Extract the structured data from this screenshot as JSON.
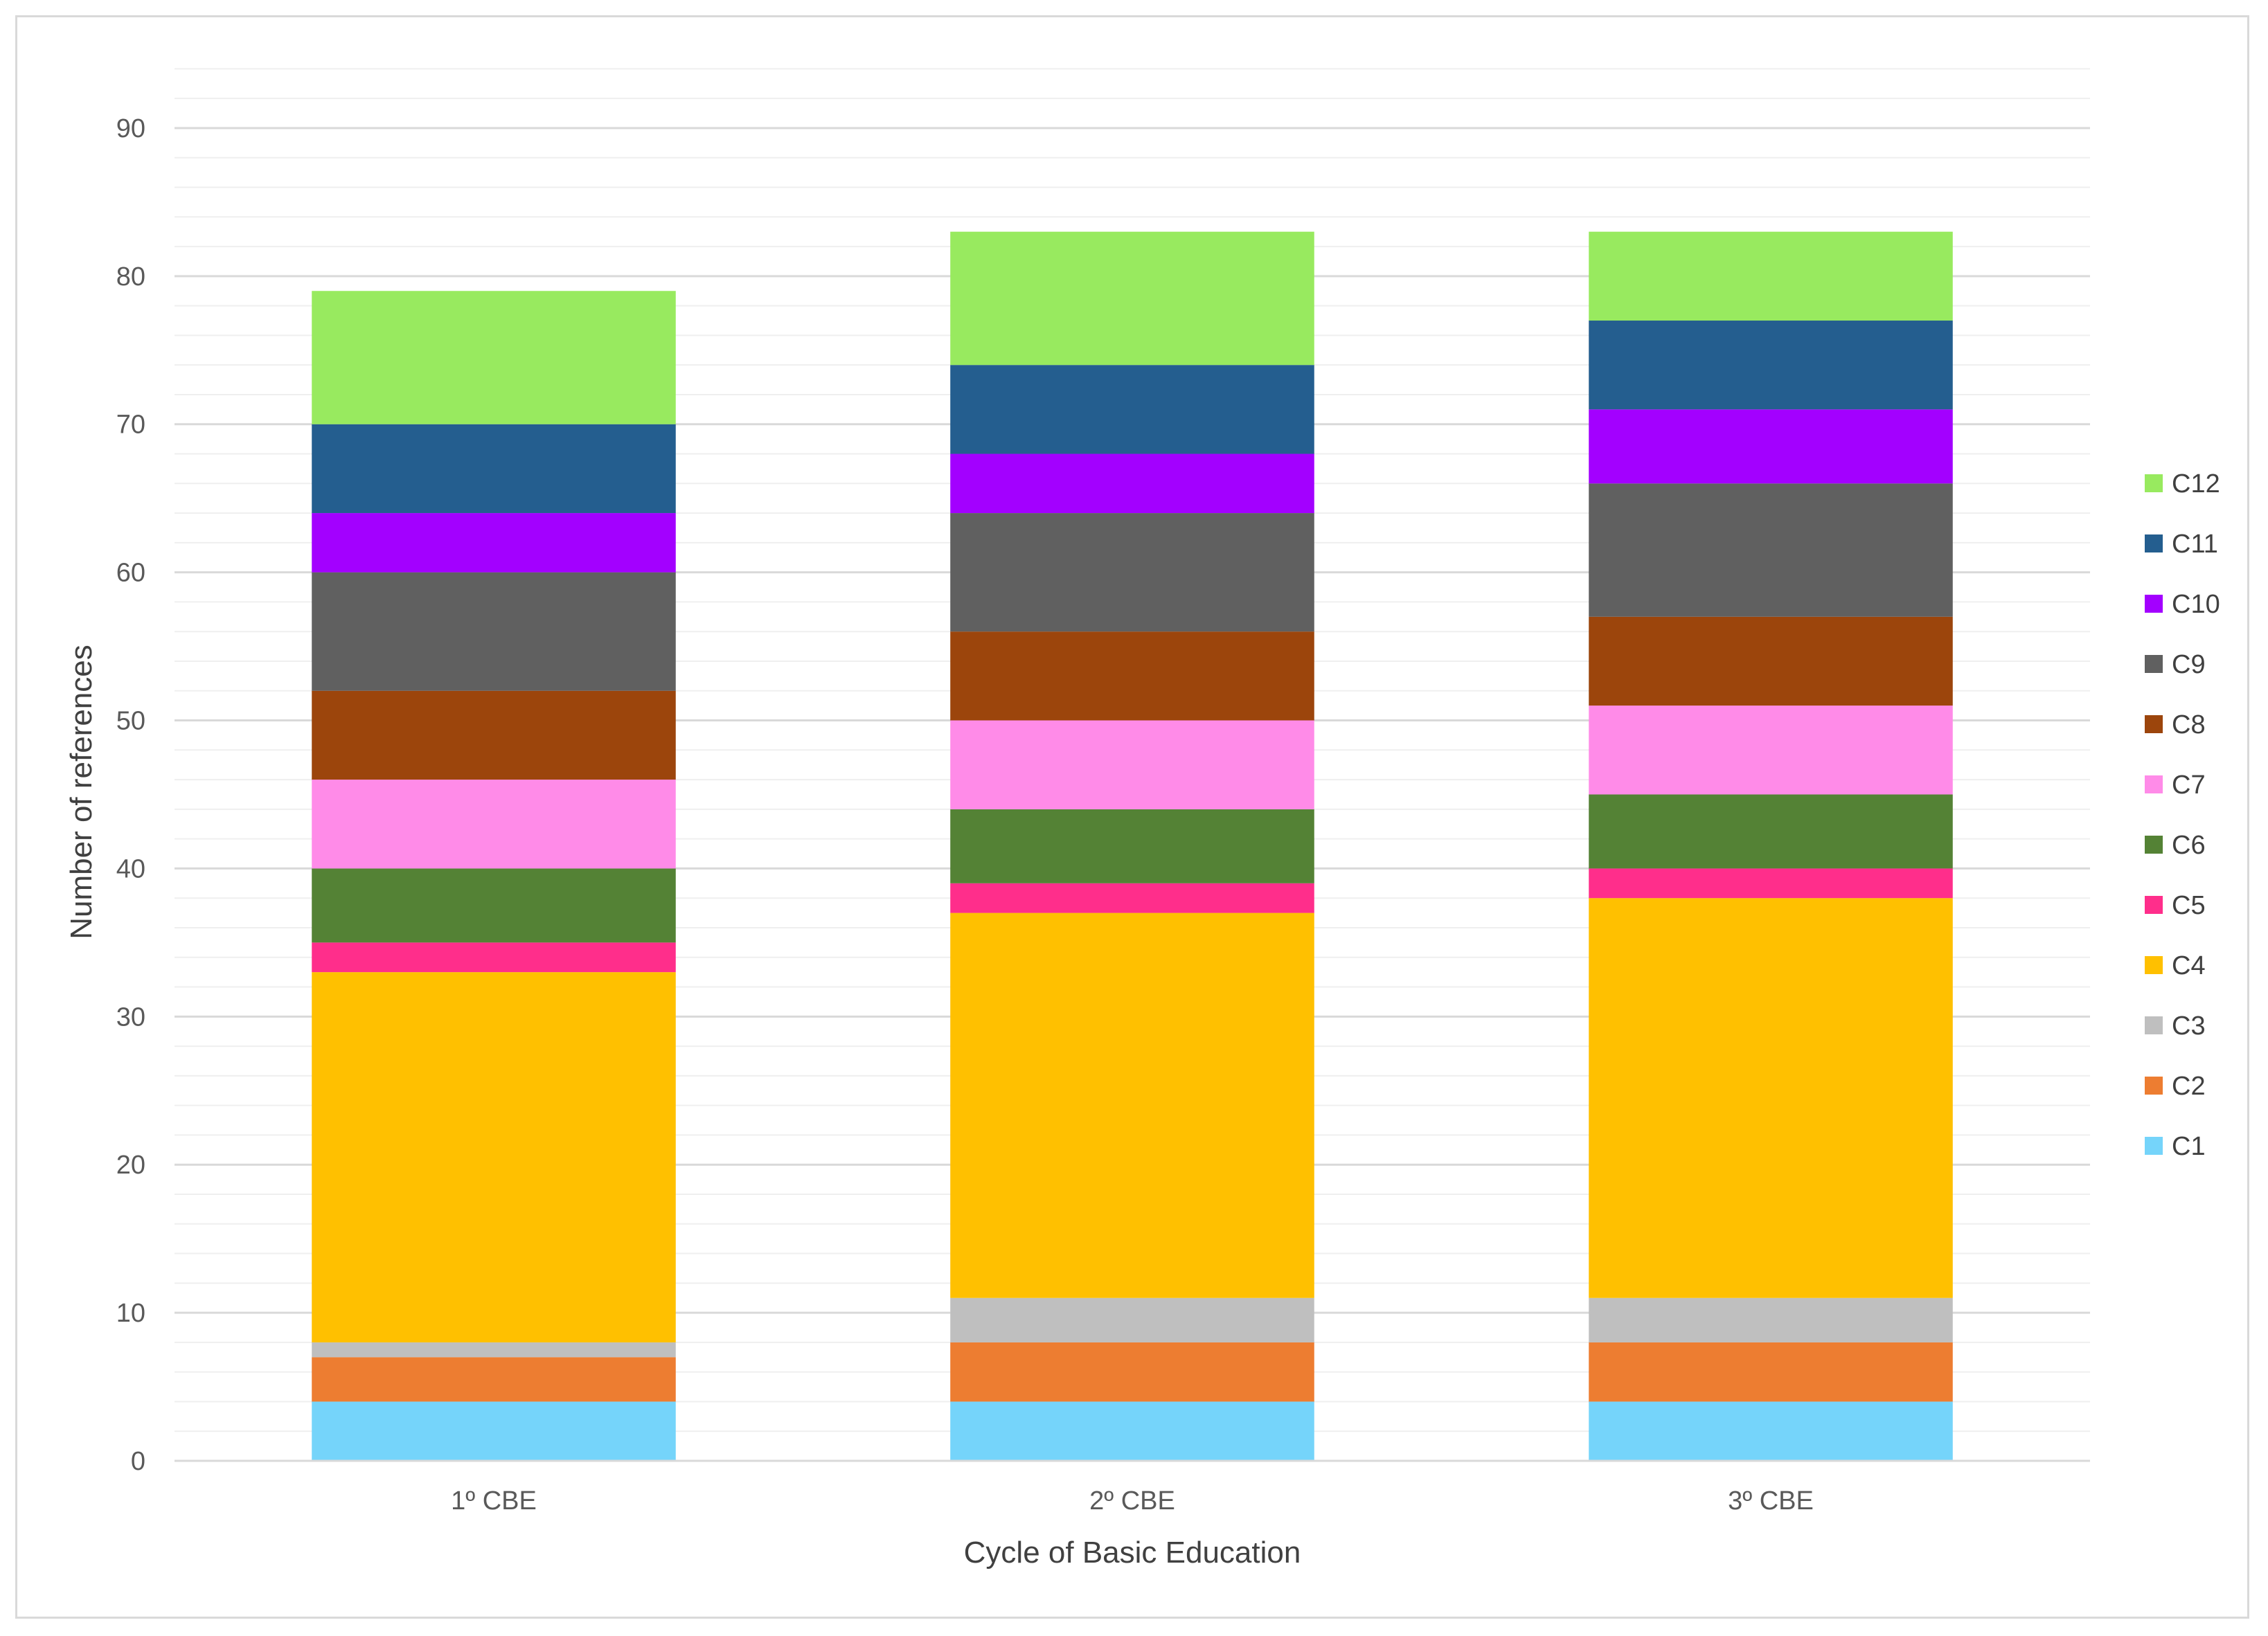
{
  "chart_data": {
    "type": "bar",
    "stacked": true,
    "title": "",
    "xlabel": "Cycle of Basic Education",
    "ylabel": "Number of references",
    "ylim": [
      0,
      95
    ],
    "yticks": [
      0,
      10,
      20,
      30,
      40,
      50,
      60,
      70,
      80,
      90
    ],
    "major_tick_step": 10,
    "minor_gridlines": true,
    "legend_position": "right",
    "categories": [
      "1º CBE",
      "2º CBE",
      "3º CBE"
    ],
    "series": [
      {
        "name": "C1",
        "color": "#75D4FA",
        "values": [
          4,
          4,
          4
        ]
      },
      {
        "name": "C2",
        "color": "#ED7D31",
        "values": [
          3,
          4,
          4
        ]
      },
      {
        "name": "C3",
        "color": "#BFBFBF",
        "values": [
          1,
          3,
          3
        ]
      },
      {
        "name": "C4",
        "color": "#FFC000",
        "values": [
          25,
          26,
          27
        ]
      },
      {
        "name": "C5",
        "color": "#FF2E8B",
        "values": [
          2,
          2,
          2
        ]
      },
      {
        "name": "C6",
        "color": "#548235",
        "values": [
          5,
          5,
          5
        ]
      },
      {
        "name": "C7",
        "color": "#FF8BE8",
        "values": [
          6,
          6,
          6
        ]
      },
      {
        "name": "C8",
        "color": "#9C450C",
        "values": [
          6,
          6,
          6
        ]
      },
      {
        "name": "C9",
        "color": "#606060",
        "values": [
          8,
          8,
          9
        ]
      },
      {
        "name": "C10",
        "color": "#A300FF",
        "values": [
          4,
          4,
          5
        ]
      },
      {
        "name": "C11",
        "color": "#245E8F",
        "values": [
          6,
          6,
          6
        ]
      },
      {
        "name": "C12",
        "color": "#98EA5F",
        "values": [
          9,
          9,
          6
        ]
      }
    ]
  }
}
